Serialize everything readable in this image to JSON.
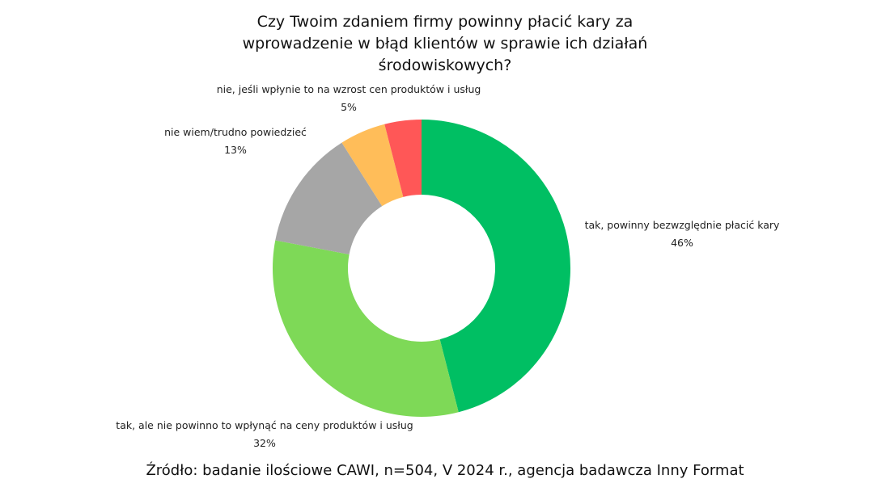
{
  "chart_data": {
    "type": "pie",
    "donut": true,
    "title": "Czy Twoim zdaniem firmy powinny płacić kary za wprowadzenie w błąd klientów w sprawie ich działań środowiskowych?",
    "source": "Źródło: badanie ilościowe CAWI, n=504, V 2024 r., agencja badawcza Inny Format",
    "slices": [
      {
        "label": "tak, powinny bezwzględnie płacić kary",
        "value": 46,
        "value_label": "46%",
        "color": "#00bf63"
      },
      {
        "label": "tak, ale nie powinno to wpłynąć na ceny produktów i usług",
        "value": 32,
        "value_label": "32%",
        "color": "#7ed957"
      },
      {
        "label": "nie wiem/trudno powiedzieć",
        "value": 13,
        "value_label": "13%",
        "color": "#a6a6a6"
      },
      {
        "label": "nie, jeśli wpłynie to na wzrost cen produktów i usług",
        "value": 5,
        "value_label": "5%",
        "color": "#ffbd59"
      },
      {
        "label": "",
        "value": 4,
        "value_label": "",
        "color": "#ff5757"
      }
    ]
  }
}
